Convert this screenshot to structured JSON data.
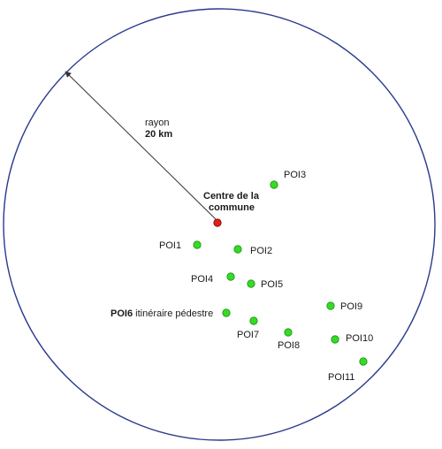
{
  "radius": {
    "label": "rayon",
    "value": "20 km"
  },
  "center": {
    "label_line1": "Centre de la",
    "label_line2": "commune",
    "color": "#e0201c"
  },
  "poi_color": "#33dd22",
  "pois": [
    {
      "id": "poi1",
      "name": "POI1"
    },
    {
      "id": "poi2",
      "name": "POI2"
    },
    {
      "id": "poi3",
      "name": "POI3"
    },
    {
      "id": "poi4",
      "name": "POI4"
    },
    {
      "id": "poi5",
      "name": "POI5"
    },
    {
      "id": "poi6",
      "name": "POI6",
      "description": "itinéraire pédestre"
    },
    {
      "id": "poi7",
      "name": "POI7"
    },
    {
      "id": "poi8",
      "name": "POI8"
    },
    {
      "id": "poi9",
      "name": "POI9"
    },
    {
      "id": "poi10",
      "name": "POI10"
    },
    {
      "id": "poi11",
      "name": "POI11"
    }
  ]
}
